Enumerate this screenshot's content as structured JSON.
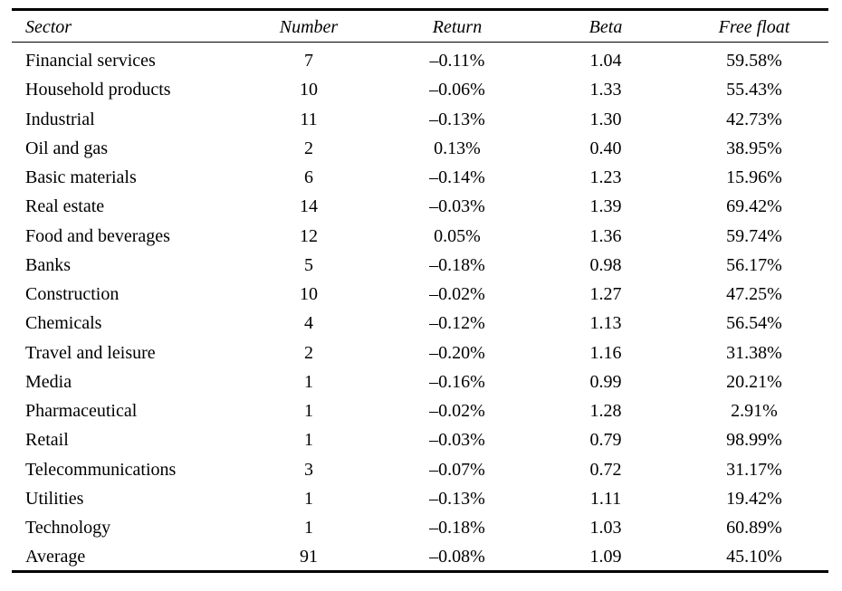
{
  "table": {
    "header": [
      "Sector",
      "Number",
      "Return",
      "Beta",
      "Free float"
    ],
    "rows": [
      [
        "Financial services",
        "7",
        "–0.11%",
        "1.04",
        "59.58%"
      ],
      [
        "Household products",
        "10",
        "–0.06%",
        "1.33",
        "55.43%"
      ],
      [
        "Industrial",
        "11",
        "–0.13%",
        "1.30",
        "42.73%"
      ],
      [
        "Oil and gas",
        "2",
        "0.13%",
        "0.40",
        "38.95%"
      ],
      [
        "Basic materials",
        "6",
        "–0.14%",
        "1.23",
        "15.96%"
      ],
      [
        "Real estate",
        "14",
        "–0.03%",
        "1.39",
        "69.42%"
      ],
      [
        "Food and beverages",
        "12",
        "0.05%",
        "1.36",
        "59.74%"
      ],
      [
        "Banks",
        "5",
        "–0.18%",
        "0.98",
        "56.17%"
      ],
      [
        "Construction",
        "10",
        "–0.02%",
        "1.27",
        "47.25%"
      ],
      [
        "Chemicals",
        "4",
        "–0.12%",
        "1.13",
        "56.54%"
      ],
      [
        "Travel and leisure",
        "2",
        "–0.20%",
        "1.16",
        "31.38%"
      ],
      [
        "Media",
        "1",
        "–0.16%",
        "0.99",
        "20.21%"
      ],
      [
        "Pharmaceutical",
        "1",
        "–0.02%",
        "1.28",
        "2.91%"
      ],
      [
        "Retail",
        "1",
        "–0.03%",
        "0.79",
        "98.99%"
      ],
      [
        "Telecommunications",
        "3",
        "–0.07%",
        "0.72",
        "31.17%"
      ],
      [
        "Utilities",
        "1",
        "–0.13%",
        "1.11",
        "19.42%"
      ],
      [
        "Technology",
        "1",
        "–0.18%",
        "1.03",
        "60.89%"
      ],
      [
        "Average",
        "91",
        "–0.08%",
        "1.09",
        "45.10%"
      ]
    ]
  }
}
